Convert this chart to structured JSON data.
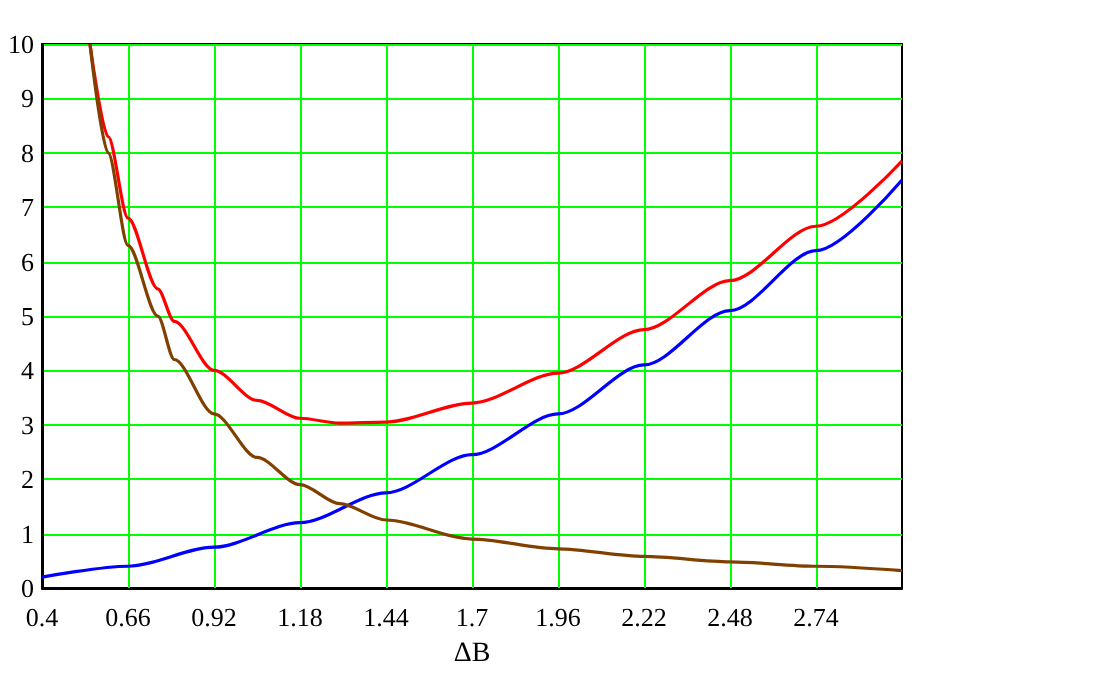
{
  "chart_data": {
    "type": "line",
    "xlabel": "ΔB",
    "xlim": [
      0.4,
      3.0
    ],
    "xticks": [
      0.4,
      0.66,
      0.92,
      1.18,
      1.44,
      1.7,
      1.96,
      2.22,
      2.48,
      2.74
    ],
    "ylim": [
      0,
      10
    ],
    "yticks": [
      0,
      1,
      2,
      3,
      4,
      5,
      6,
      7,
      8,
      9,
      10
    ],
    "grid": true,
    "marker": "none",
    "line_style": "solid",
    "series": [
      {
        "color": "#ff0000",
        "x": [
          0.545,
          0.6,
          0.66,
          0.75,
          0.8,
          0.92,
          1.05,
          1.18,
          1.3,
          1.44,
          1.7,
          1.96,
          2.22,
          2.48,
          2.74,
          3.0
        ],
        "values": [
          10,
          8.3,
          6.8,
          5.5,
          4.9,
          4.0,
          3.45,
          3.12,
          3.03,
          3.05,
          3.4,
          3.95,
          4.75,
          5.65,
          6.65,
          7.85
        ]
      },
      {
        "color": "#0000ff",
        "x": [
          0.4,
          0.66,
          0.92,
          1.18,
          1.44,
          1.7,
          1.96,
          2.22,
          2.48,
          2.74,
          3.0
        ],
        "values": [
          0.2,
          0.4,
          0.75,
          1.2,
          1.75,
          2.45,
          3.2,
          4.1,
          5.1,
          6.2,
          7.5
        ]
      },
      {
        "color": "#804000",
        "x": [
          0.545,
          0.6,
          0.66,
          0.75,
          0.8,
          0.92,
          1.05,
          1.18,
          1.3,
          1.44,
          1.7,
          1.96,
          2.22,
          2.48,
          2.74,
          3.0
        ],
        "values": [
          10,
          8,
          6.3,
          5,
          4.2,
          3.2,
          2.4,
          1.9,
          1.55,
          1.25,
          0.9,
          0.72,
          0.58,
          0.48,
          0.4,
          0.32
        ]
      }
    ]
  }
}
